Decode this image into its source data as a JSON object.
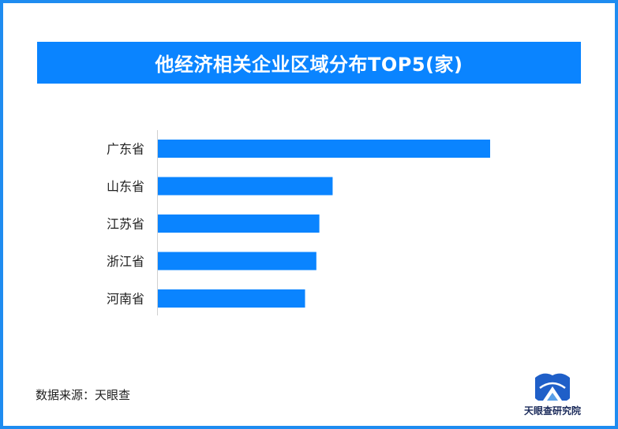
{
  "title": "他经济相关企业区域分布TOP5(家)",
  "source": "数据来源：天眼查",
  "logo": {
    "text": "天眼查研究院",
    "icon": "tianyancha-logo-icon"
  },
  "colors": {
    "bar": "#0a84ff",
    "title_bg": "#0a84ff",
    "border": "#1e8cf0"
  },
  "chart_data": {
    "type": "bar",
    "orientation": "horizontal",
    "title": "他经济相关企业区域分布TOP5(家)",
    "categories": [
      "广东省",
      "山东省",
      "江苏省",
      "浙江省",
      "河南省"
    ],
    "values": [
      1000,
      526,
      486,
      477,
      443
    ],
    "xlim": [
      0,
      1000
    ],
    "grid": false,
    "legend": "none"
  }
}
